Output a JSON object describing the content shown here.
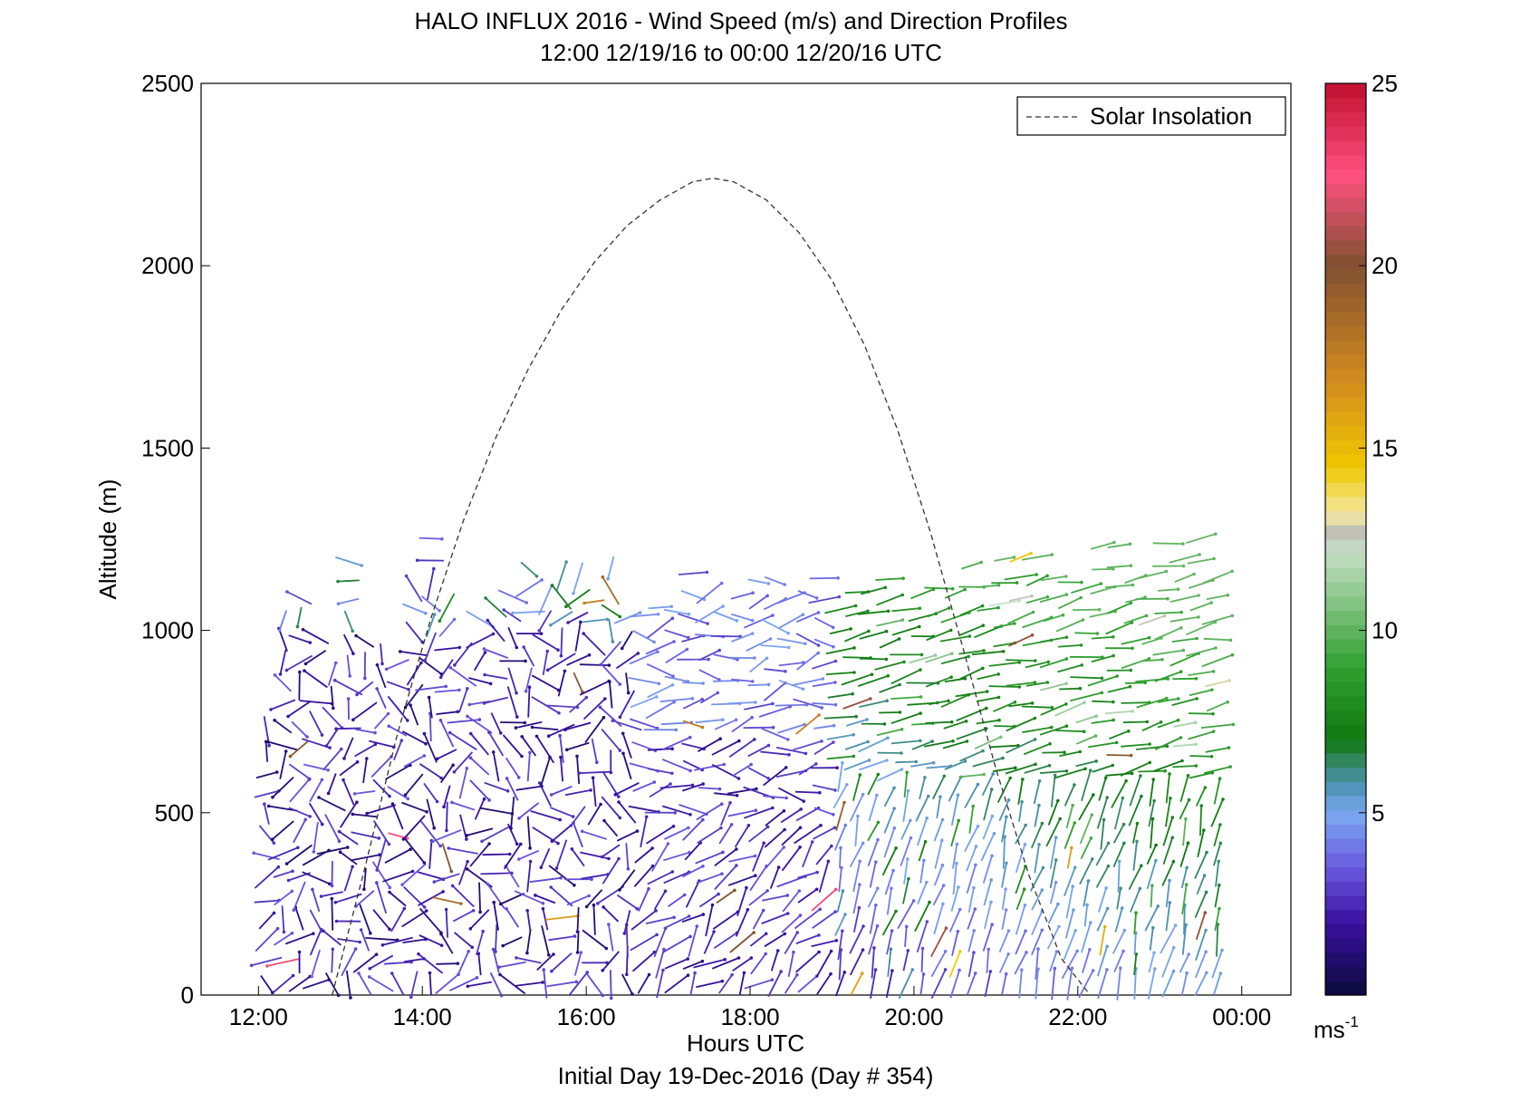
{
  "chart_data": {
    "type": "quiver",
    "title": "HALO INFLUX 2016 - Wind Speed (m/s) and Direction Profiles",
    "subtitle": "12:00 12/19/16 to 00:00 12/20/16  UTC",
    "xlabel": "Hours UTC",
    "ylabel": "Altitude (m)",
    "footer": "Initial Day 19-Dec-2016 (Day # 354)",
    "xlim": [
      11.3,
      24.6
    ],
    "ylim": [
      0,
      2500
    ],
    "x_ticks": [
      12,
      14,
      16,
      18,
      20,
      22,
      24
    ],
    "x_tick_labels": [
      "12:00",
      "14:00",
      "16:00",
      "18:00",
      "20:00",
      "22:00",
      "00:00"
    ],
    "y_ticks": [
      0,
      500,
      1000,
      1500,
      2000,
      2500
    ],
    "y_tick_labels": [
      "0",
      "500",
      "1000",
      "1500",
      "2000",
      "2500"
    ],
    "legend": {
      "label": "Solar Insolation",
      "placement": "top-right",
      "style": "dashed"
    },
    "solar_insolation": {
      "x": [
        12.9,
        13.3,
        13.7,
        14.1,
        14.5,
        14.9,
        15.3,
        15.7,
        16.1,
        16.5,
        16.9,
        17.3,
        17.55,
        17.8,
        18.2,
        18.6,
        19.0,
        19.4,
        19.8,
        20.2,
        20.6,
        21.0,
        21.4,
        21.8,
        22.15
      ],
      "y": [
        0,
        350,
        720,
        1030,
        1300,
        1530,
        1720,
        1880,
        2010,
        2110,
        2180,
        2230,
        2240,
        2230,
        2180,
        2090,
        1960,
        1780,
        1550,
        1270,
        950,
        620,
        330,
        100,
        0
      ]
    },
    "colorbar": {
      "range": [
        0,
        25
      ],
      "ticks": [
        5,
        10,
        15,
        20,
        25
      ],
      "tick_labels": [
        "5",
        "10",
        "15",
        "20",
        "25"
      ],
      "unit_label": "ms",
      "unit_exponent": "-1",
      "stops": [
        {
          "v": 0,
          "c": "#0a0a3a"
        },
        {
          "v": 2,
          "c": "#3a10a0"
        },
        {
          "v": 3.5,
          "c": "#6a5ae0"
        },
        {
          "v": 5,
          "c": "#7aa8f0"
        },
        {
          "v": 5.8,
          "c": "#4a90b0"
        },
        {
          "v": 6.3,
          "c": "#3a8a70"
        },
        {
          "v": 7,
          "c": "#107810"
        },
        {
          "v": 9,
          "c": "#30a030"
        },
        {
          "v": 12.2,
          "c": "#c8e0c8"
        },
        {
          "v": 12.6,
          "c": "#b8b8b8"
        },
        {
          "v": 13.2,
          "c": "#f2e8a0"
        },
        {
          "v": 14.5,
          "c": "#f0c800"
        },
        {
          "v": 17,
          "c": "#d08820"
        },
        {
          "v": 20,
          "c": "#805030"
        },
        {
          "v": 22.5,
          "c": "#ff5080"
        },
        {
          "v": 25,
          "c": "#c01030"
        }
      ]
    },
    "wind_profile": {
      "time_start": 12.1,
      "time_end": 23.7,
      "time_step": 0.2,
      "alt_max": 1300,
      "description_free": true
    }
  }
}
